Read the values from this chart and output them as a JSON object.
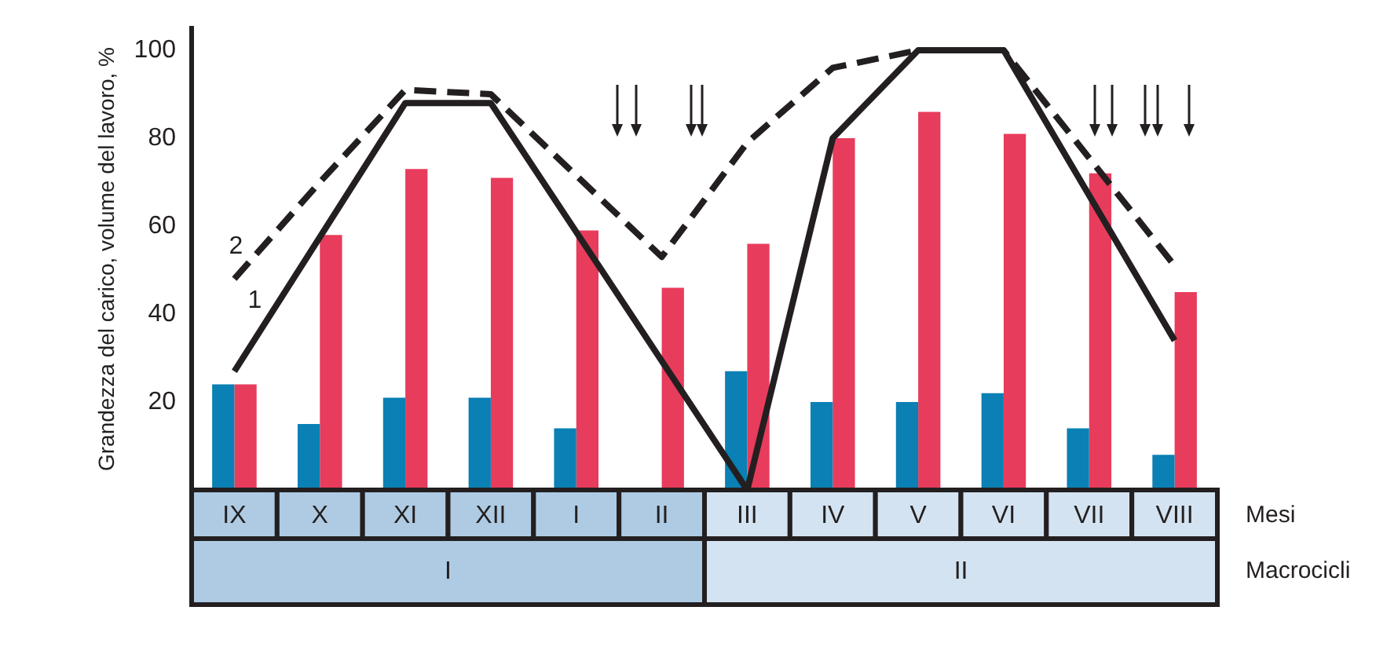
{
  "chart_data": {
    "type": "bar",
    "ylabel": "Grandezza del carico, volume del lavoro, %",
    "xlabel": "Mesi",
    "categories": [
      "IX",
      "X",
      "XI",
      "XII",
      "I",
      "II",
      "III",
      "IV",
      "V",
      "VI",
      "VII",
      "VIII"
    ],
    "series": [
      {
        "color": "#0a80b4",
        "values": [
          24,
          15,
          21,
          21,
          14,
          null,
          27,
          20,
          20,
          22,
          14,
          8
        ]
      },
      {
        "color": "#e83c5c",
        "values": [
          24,
          58,
          73,
          71,
          59,
          46,
          56,
          80,
          86,
          81,
          72,
          45
        ]
      },
      {
        "type": "line",
        "name": "1",
        "color": "#231f20",
        "line_style": "solid",
        "values": [
          27,
          null,
          88,
          88,
          null,
          null,
          0,
          80,
          100,
          100,
          null,
          34
        ]
      },
      {
        "type": "line",
        "name": "2",
        "color": "#231f20",
        "line_style": "dashed",
        "values": [
          48,
          70,
          91,
          90,
          null,
          53,
          79,
          96,
          100,
          100,
          null,
          51
        ]
      }
    ],
    "ylim": [
      0,
      105
    ],
    "yticks": [
      20,
      40,
      60,
      80,
      100
    ],
    "grid": false,
    "legend": false,
    "marker": "none",
    "annotations": [
      "Macrocicli",
      "I",
      "II"
    ]
  }
}
